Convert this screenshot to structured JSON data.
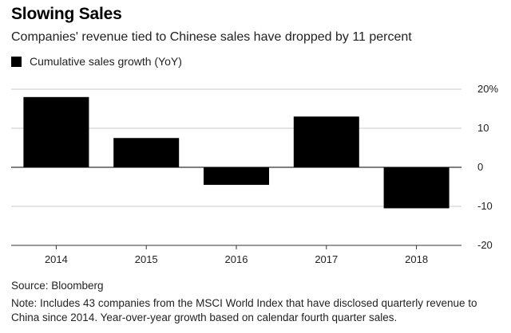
{
  "title": "Slowing Sales",
  "subtitle": "Companies' revenue tied to Chinese sales have dropped by 11 percent",
  "legend": {
    "label": "Cumulative sales growth (YoY)"
  },
  "source": "Source: Bloomberg",
  "note": "Note: Includes 43 companies from the MSCI World Index that have disclosed quarterly revenue to China since 2014. Year-over-year growth based on calendar fourth quarter sales.",
  "chart_data": {
    "type": "bar",
    "title": "Slowing Sales",
    "xlabel": "",
    "ylabel": "",
    "categories": [
      "2014",
      "2015",
      "2016",
      "2017",
      "2018"
    ],
    "series": [
      {
        "name": "Cumulative sales growth (YoY)",
        "values": [
          18,
          7.5,
          -4.5,
          13,
          -10.5
        ],
        "color": "#000000"
      }
    ],
    "ylim": [
      -20,
      20
    ],
    "yticks": [
      -20,
      -10,
      0,
      10,
      20
    ],
    "ytick_labels": [
      "-20",
      "-10",
      "0",
      "10",
      "20%"
    ],
    "grid": true,
    "legend_position": "top-left"
  }
}
